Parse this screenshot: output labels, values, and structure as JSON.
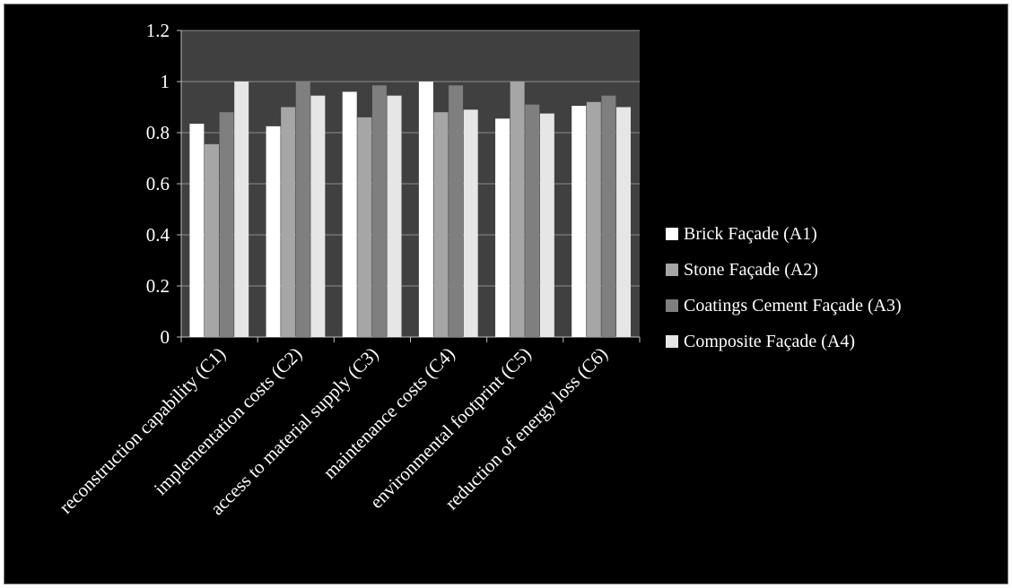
{
  "chart_data": {
    "type": "bar",
    "categories": [
      "reconstruction capability (C1)",
      "implementation costs (C2)",
      "access to material supply (C3)",
      "maintenance costs (C4)",
      "environmental footprint (C5)",
      "reduction of energy loss (C6)"
    ],
    "series": [
      {
        "name": "Brick Façade (A1)",
        "values": [
          0.835,
          0.825,
          0.96,
          1.0,
          0.855,
          0.905
        ],
        "color": "#ffffff"
      },
      {
        "name": "Stone Façade (A2)",
        "values": [
          0.755,
          0.9,
          0.86,
          0.88,
          1.0,
          0.92
        ],
        "color": "#a6a6a6"
      },
      {
        "name": "Coatings Cement Façade (A3)",
        "values": [
          0.88,
          1.0,
          0.985,
          0.985,
          0.91,
          0.945
        ],
        "color": "#7f7f7f"
      },
      {
        "name": "Composite Façade (A4)",
        "values": [
          1.0,
          0.945,
          0.945,
          0.89,
          0.875,
          0.9
        ],
        "color": "#e6e6e6"
      }
    ],
    "y_ticks": [
      "0",
      "0.2",
      "0.4",
      "0.6",
      "0.8",
      "1",
      "1.2"
    ],
    "ylim": [
      0,
      1.2
    ],
    "grid": true,
    "legend_position": "right",
    "title": "",
    "xlabel": "",
    "ylabel": ""
  }
}
